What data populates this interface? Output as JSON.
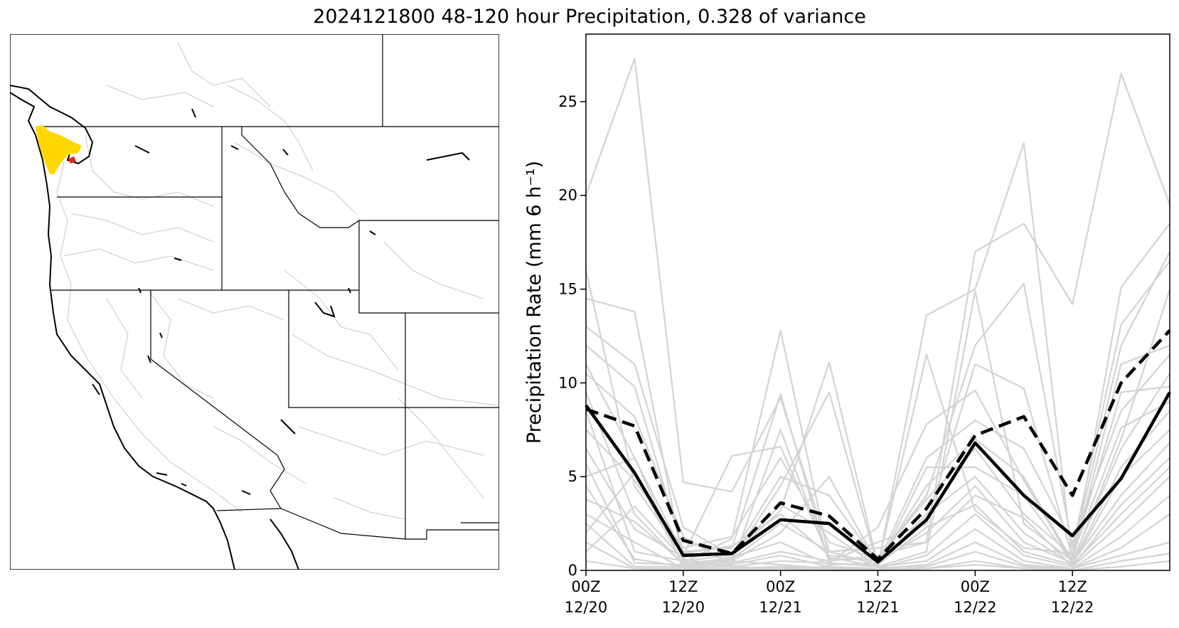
{
  "figure": {
    "title": "2024121800 48-120 hour Precipitation, 0.328 of variance"
  },
  "map": {
    "highlight_colors": {
      "basin_fill": "#ffd700",
      "sub_basin": "#e8241c"
    },
    "boundary_color": "#000000",
    "basin_line_color": "#bdbdbd"
  },
  "chart_data": {
    "type": "line",
    "title": "",
    "xlabel": "",
    "ylabel": "Precipitation Rate (mm 6 h⁻¹)",
    "xlim": [
      0,
      12
    ],
    "ylim": [
      0,
      28.6
    ],
    "yticks": [
      0,
      5,
      10,
      15,
      20,
      25
    ],
    "xticks": [
      {
        "x": 0,
        "line1": "00Z",
        "line2": "12/20"
      },
      {
        "x": 2,
        "line1": "12Z",
        "line2": "12/20"
      },
      {
        "x": 4,
        "line1": "00Z",
        "line2": "12/21"
      },
      {
        "x": 6,
        "line1": "12Z",
        "line2": "12/21"
      },
      {
        "x": 8,
        "line1": "00Z",
        "line2": "12/22"
      },
      {
        "x": 10,
        "line1": "12Z",
        "line2": "12/22"
      }
    ],
    "x": [
      0,
      1,
      2,
      3,
      4,
      5,
      6,
      7,
      8,
      9,
      10,
      11,
      12
    ],
    "series": [
      {
        "style": "solid",
        "color": "#000000",
        "values": [
          8.8,
          5.2,
          0.8,
          0.9,
          2.7,
          2.5,
          0.45,
          2.7,
          6.8,
          4.0,
          1.85,
          4.9,
          9.5
        ]
      },
      {
        "style": "dashed",
        "color": "#000000",
        "values": [
          8.6,
          7.7,
          1.6,
          0.9,
          3.6,
          2.9,
          0.6,
          3.3,
          7.2,
          8.2,
          4.0,
          10.0,
          12.8
        ]
      }
    ],
    "ensemble_color": "#d3d3d3",
    "ensemble": [
      [
        20.0,
        27.3,
        4.7,
        4.2,
        9.2,
        1.0,
        1.2,
        1.5,
        17.0,
        18.5,
        14.2,
        26.5,
        19.5
      ],
      [
        16.0,
        4.5,
        0.8,
        6.1,
        6.6,
        0.7,
        0.2,
        13.6,
        15.0,
        22.8,
        0.4,
        15.1,
        18.5
      ],
      [
        14.5,
        13.8,
        0.4,
        1.7,
        12.8,
        0.6,
        0.6,
        4.0,
        12.0,
        15.3,
        1.2,
        13.1,
        16.5
      ],
      [
        13.0,
        11.0,
        2.3,
        0.8,
        3.2,
        11.1,
        0.3,
        11.5,
        3.2,
        1.2,
        0.9,
        12.0,
        17.0
      ],
      [
        12.0,
        9.8,
        1.0,
        1.2,
        9.4,
        0.4,
        2.3,
        7.8,
        9.6,
        4.8,
        0.4,
        7.0,
        15.0
      ],
      [
        11.0,
        6.0,
        0.2,
        0.6,
        4.5,
        9.5,
        0.2,
        1.0,
        14.9,
        2.5,
        0.5,
        11.0,
        12.0
      ],
      [
        10.5,
        8.2,
        1.8,
        0.3,
        7.5,
        0.5,
        1.5,
        2.5,
        11.0,
        9.7,
        0.7,
        9.5,
        9.8
      ],
      [
        9.5,
        3.0,
        0.3,
        0.7,
        1.5,
        0.3,
        0.4,
        6.0,
        8.0,
        6.5,
        1.5,
        8.5,
        11.5
      ],
      [
        8.5,
        1.0,
        0.5,
        0.8,
        5.0,
        4.0,
        0.4,
        4.5,
        7.0,
        5.0,
        0.5,
        6.5,
        10.5
      ],
      [
        7.5,
        4.8,
        1.2,
        1.8,
        6.0,
        1.5,
        0.6,
        3.8,
        6.5,
        3.0,
        0.8,
        7.6,
        9.0
      ],
      [
        6.5,
        2.2,
        0.7,
        0.9,
        3.5,
        2.0,
        0.2,
        5.5,
        5.5,
        4.0,
        0.4,
        5.5,
        8.5
      ],
      [
        5.7,
        0.4,
        0.3,
        0.5,
        2.0,
        5.0,
        0.3,
        3.0,
        5.0,
        2.0,
        0.3,
        5.0,
        7.5
      ],
      [
        5.0,
        6.0,
        0.9,
        1.3,
        3.0,
        0.8,
        0.5,
        2.0,
        4.5,
        1.5,
        0.4,
        4.0,
        6.8
      ],
      [
        4.5,
        0.6,
        0.2,
        0.4,
        1.0,
        0.5,
        0.8,
        1.5,
        4.0,
        2.8,
        0.2,
        3.5,
        6.0
      ],
      [
        3.8,
        2.6,
        0.4,
        0.6,
        2.5,
        1.0,
        0.3,
        2.3,
        3.5,
        1.0,
        0.3,
        3.0,
        5.5
      ],
      [
        3.0,
        1.5,
        0.1,
        0.3,
        0.8,
        0.2,
        0.1,
        0.8,
        3.0,
        0.8,
        0.2,
        2.5,
        5.0
      ],
      [
        2.5,
        0.2,
        0.2,
        0.2,
        0.5,
        0.4,
        0.2,
        0.5,
        2.2,
        0.5,
        0.1,
        1.8,
        4.0
      ],
      [
        2.0,
        5.2,
        0.3,
        0.5,
        0.3,
        0.1,
        0.1,
        0.3,
        1.5,
        0.3,
        0.1,
        1.2,
        3.0
      ],
      [
        1.5,
        0.1,
        0.1,
        0.1,
        0.2,
        0.1,
        0.0,
        0.2,
        1.0,
        0.2,
        0.1,
        0.8,
        1.5
      ],
      [
        1.0,
        3.4,
        0.6,
        0.2,
        0.1,
        0.2,
        0.1,
        0.1,
        0.5,
        0.1,
        0.0,
        0.5,
        0.9
      ],
      [
        0.5,
        0.1,
        0.0,
        0.1,
        0.1,
        0.0,
        0.0,
        0.1,
        0.3,
        0.1,
        0.0,
        0.2,
        0.5
      ]
    ]
  }
}
